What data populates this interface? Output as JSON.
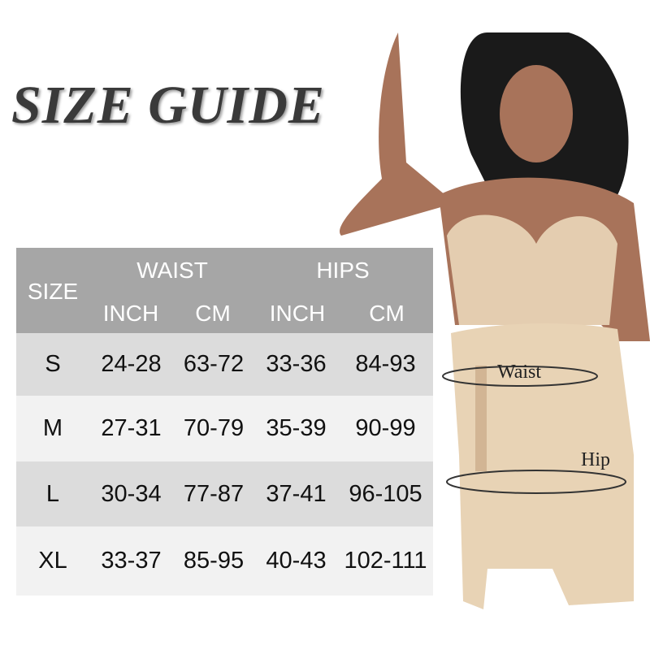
{
  "title": "SIZE GUIDE",
  "table": {
    "header": {
      "size": "SIZE",
      "waist": "WAIST",
      "hips": "HIPS",
      "inch": "INCH",
      "cm": "CM"
    },
    "rows": [
      {
        "size": "S",
        "waist_inch": "24-28",
        "waist_cm": "63-72",
        "hips_inch": "33-36",
        "hips_cm": "84-93"
      },
      {
        "size": "M",
        "waist_inch": "27-31",
        "waist_cm": "70-79",
        "hips_inch": "35-39",
        "hips_cm": "90-99"
      },
      {
        "size": "L",
        "waist_inch": "30-34",
        "waist_cm": "77-87",
        "hips_inch": "37-41",
        "hips_cm": "96-105"
      },
      {
        "size": "XL",
        "waist_inch": "33-37",
        "waist_cm": "85-95",
        "hips_inch": "40-43",
        "hips_cm": "102-111"
      }
    ],
    "colors": {
      "header": "#a6a6a6",
      "row_dark": "#dcdcdc",
      "row_light": "#f2f2f2"
    }
  },
  "figure_labels": {
    "waist": "Waist",
    "hip": "Hip"
  }
}
